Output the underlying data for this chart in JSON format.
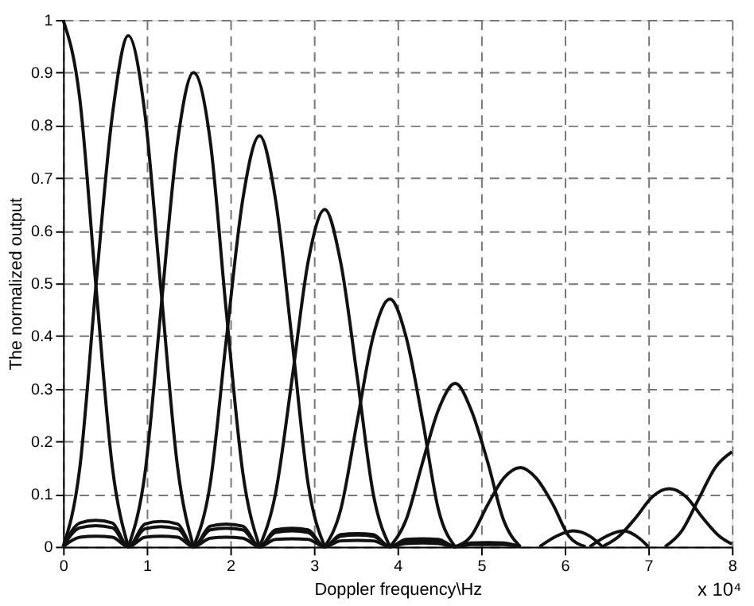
{
  "chart_data": {
    "type": "line",
    "xlabel": "Doppler frequency\\Hz",
    "ylabel": "The normalized output",
    "annotations": [
      "x 10⁴"
    ],
    "xlim": [
      0,
      8
    ],
    "xticks": [
      0,
      1,
      2,
      3,
      4,
      5,
      6,
      7,
      8
    ],
    "ylim": [
      0,
      1
    ],
    "yticks": [
      0,
      0.1,
      0.2,
      0.3,
      0.4,
      0.5,
      0.6,
      0.7,
      0.8,
      0.9,
      1
    ],
    "grid": true,
    "legend": false,
    "marker": "none",
    "line_style": "solid",
    "series": [
      {
        "color": "#111111",
        "x": [
          0,
          0.2,
          0.39,
          0.59,
          0.78
        ],
        "values": [
          1,
          0.85,
          0.5,
          0.15,
          0
        ]
      },
      {
        "color": "#111111",
        "x": [
          0,
          0.2,
          0.39,
          0.59,
          0.78,
          0.98,
          1.17,
          1.37,
          1.56
        ],
        "values": [
          0,
          0.15,
          0.49,
          0.82,
          0.97,
          0.82,
          0.49,
          0.15,
          0
        ]
      },
      {
        "color": "#111111",
        "x": [
          0.78,
          0.98,
          1.17,
          1.37,
          1.56,
          1.76,
          1.95,
          2.15,
          2.35
        ],
        "values": [
          0,
          0.14,
          0.45,
          0.77,
          0.9,
          0.77,
          0.45,
          0.14,
          0
        ]
      },
      {
        "color": "#111111",
        "x": [
          1.56,
          1.76,
          1.95,
          2.15,
          2.35,
          2.54,
          2.74,
          2.93,
          3.13
        ],
        "values": [
          0,
          0.12,
          0.39,
          0.66,
          0.78,
          0.66,
          0.39,
          0.12,
          0
        ]
      },
      {
        "color": "#111111",
        "x": [
          2.35,
          2.54,
          2.74,
          2.93,
          3.13,
          3.32,
          3.52,
          3.71,
          3.91
        ],
        "values": [
          0,
          0.1,
          0.32,
          0.54,
          0.64,
          0.54,
          0.32,
          0.1,
          0
        ]
      },
      {
        "color": "#111111",
        "x": [
          3.13,
          3.32,
          3.52,
          3.71,
          3.91,
          4.1,
          4.3,
          4.49,
          4.69
        ],
        "values": [
          0,
          0.07,
          0.24,
          0.4,
          0.47,
          0.4,
          0.24,
          0.07,
          0
        ]
      },
      {
        "color": "#111111",
        "x": [
          3.91,
          4.1,
          4.3,
          4.49,
          4.69,
          4.88,
          5.08,
          5.27,
          5.47
        ],
        "values": [
          0,
          0.05,
          0.16,
          0.26,
          0.31,
          0.26,
          0.16,
          0.05,
          0
        ]
      },
      {
        "color": "#111111",
        "x": [
          4.69,
          4.88,
          5.08,
          5.27,
          5.47,
          5.66,
          5.86,
          6.05,
          6.25
        ],
        "values": [
          0,
          0.02,
          0.08,
          0.13,
          0.15,
          0.13,
          0.08,
          0.02,
          0
        ]
      },
      {
        "color": "#111111",
        "x": [
          6.45,
          6.65,
          6.85,
          7.05,
          7.25,
          7.45,
          7.65,
          7.85,
          8.0
        ],
        "values": [
          0,
          0.02,
          0.055,
          0.095,
          0.11,
          0.095,
          0.055,
          0.02,
          0.005
        ]
      },
      {
        "color": "#111111",
        "x": [
          7.2,
          7.4,
          7.6,
          7.8,
          8.0
        ],
        "values": [
          0,
          0.03,
          0.09,
          0.15,
          0.18
        ]
      },
      {
        "color": "#111111",
        "x": [
          5.7,
          5.9,
          6.1,
          6.3,
          6.45
        ],
        "values": [
          0,
          0.02,
          0.03,
          0.02,
          0
        ]
      },
      {
        "color": "#111111",
        "x": [
          6.3,
          6.5,
          6.7,
          6.9,
          7.0
        ],
        "values": [
          0,
          0.02,
          0.03,
          0.015,
          0
        ]
      },
      {
        "color": "#111111",
        "x": [
          0,
          0.2,
          0.39,
          0.59,
          0.78,
          0.98,
          1.17,
          1.37,
          1.56,
          1.76,
          1.95,
          2.15,
          2.35,
          2.54,
          2.74,
          2.93,
          3.13,
          3.32,
          3.52,
          3.71,
          3.91,
          4.1,
          4.3,
          4.49,
          4.69,
          4.88,
          5.08,
          5.27,
          5.47
        ],
        "values": [
          0,
          0.045,
          0.05,
          0.045,
          0,
          0.043,
          0.048,
          0.043,
          0,
          0.039,
          0.043,
          0.039,
          0,
          0.032,
          0.035,
          0.032,
          0,
          0.023,
          0.025,
          0.023,
          0,
          0.014,
          0.015,
          0.014,
          0,
          0.007,
          0.008,
          0.007,
          0
        ]
      },
      {
        "color": "#111111",
        "x": [
          0,
          0.2,
          0.39,
          0.59,
          0.78,
          0.98,
          1.17,
          1.37,
          1.56,
          1.76,
          1.95,
          2.15,
          2.35,
          2.54,
          2.74,
          2.93,
          3.13,
          3.32,
          3.52,
          3.71,
          3.91,
          4.1,
          4.3,
          4.49,
          4.69,
          4.88,
          5.08,
          5.27,
          5.47
        ],
        "values": [
          0,
          0.036,
          0.04,
          0.036,
          0,
          0.034,
          0.038,
          0.034,
          0,
          0.032,
          0.035,
          0.032,
          0,
          0.027,
          0.03,
          0.027,
          0,
          0.02,
          0.022,
          0.02,
          0,
          0.011,
          0.012,
          0.011,
          0,
          0.005,
          0.006,
          0.005,
          0
        ]
      },
      {
        "color": "#111111",
        "x": [
          0,
          0.2,
          0.39,
          0.59,
          0.78,
          0.98,
          1.17,
          1.37,
          1.56,
          1.76,
          1.95,
          2.15,
          2.35,
          2.54,
          2.74,
          2.93,
          3.13,
          3.32,
          3.52,
          3.71,
          3.91,
          4.1,
          4.3,
          4.49,
          4.69,
          4.88,
          5.08,
          5.27,
          5.47
        ],
        "values": [
          0,
          0.018,
          0.02,
          0.018,
          0,
          0.018,
          0.02,
          0.018,
          0,
          0.016,
          0.018,
          0.016,
          0,
          0.014,
          0.015,
          0.014,
          0,
          0.011,
          0.012,
          0.011,
          0,
          0.006,
          0.007,
          0.006,
          0,
          0.004,
          0.004,
          0.004,
          0
        ]
      }
    ]
  }
}
